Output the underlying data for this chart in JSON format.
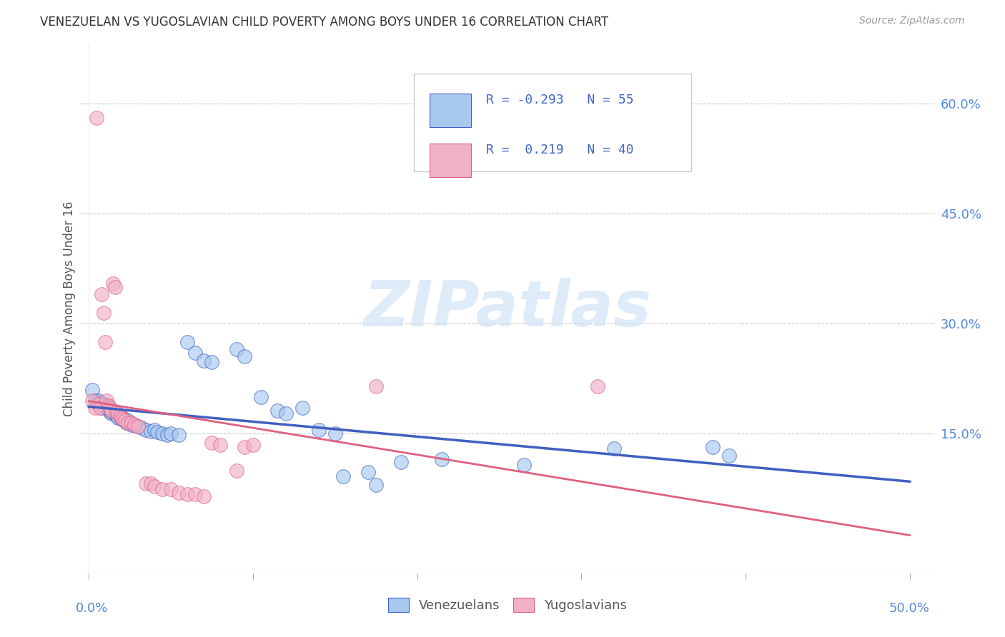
{
  "title": "VENEZUELAN VS YUGOSLAVIAN CHILD POVERTY AMONG BOYS UNDER 16 CORRELATION CHART",
  "source": "Source: ZipAtlas.com",
  "ylabel": "Child Poverty Among Boys Under 16",
  "ytick_labels": [
    "60.0%",
    "45.0%",
    "30.0%",
    "15.0%"
  ],
  "ytick_values": [
    0.6,
    0.45,
    0.3,
    0.15
  ],
  "xlim": [
    -0.005,
    0.515
  ],
  "ylim": [
    -0.04,
    0.68
  ],
  "color_venezuelan": "#A8C8F0",
  "color_yugoslavian": "#F0B0C8",
  "color_line_venezuelan": "#4060C0",
  "color_line_yugoslavian": "#E06080",
  "watermark": "ZIPatlas",
  "venezuelan_points": [
    [
      0.002,
      0.21
    ],
    [
      0.004,
      0.195
    ],
    [
      0.006,
      0.195
    ],
    [
      0.007,
      0.192
    ],
    [
      0.008,
      0.185
    ],
    [
      0.009,
      0.188
    ],
    [
      0.01,
      0.19
    ],
    [
      0.011,
      0.185
    ],
    [
      0.012,
      0.183
    ],
    [
      0.013,
      0.18
    ],
    [
      0.014,
      0.178
    ],
    [
      0.015,
      0.18
    ],
    [
      0.016,
      0.178
    ],
    [
      0.017,
      0.175
    ],
    [
      0.018,
      0.172
    ],
    [
      0.019,
      0.175
    ],
    [
      0.02,
      0.17
    ],
    [
      0.021,
      0.172
    ],
    [
      0.022,
      0.168
    ],
    [
      0.023,
      0.165
    ],
    [
      0.024,
      0.168
    ],
    [
      0.025,
      0.165
    ],
    [
      0.026,
      0.162
    ],
    [
      0.028,
      0.162
    ],
    [
      0.03,
      0.16
    ],
    [
      0.032,
      0.158
    ],
    [
      0.035,
      0.155
    ],
    [
      0.038,
      0.153
    ],
    [
      0.04,
      0.155
    ],
    [
      0.042,
      0.152
    ],
    [
      0.045,
      0.15
    ],
    [
      0.048,
      0.148
    ],
    [
      0.05,
      0.15
    ],
    [
      0.055,
      0.148
    ],
    [
      0.06,
      0.275
    ],
    [
      0.065,
      0.26
    ],
    [
      0.07,
      0.25
    ],
    [
      0.075,
      0.248
    ],
    [
      0.09,
      0.265
    ],
    [
      0.095,
      0.255
    ],
    [
      0.105,
      0.2
    ],
    [
      0.115,
      0.182
    ],
    [
      0.12,
      0.178
    ],
    [
      0.13,
      0.185
    ],
    [
      0.14,
      0.155
    ],
    [
      0.15,
      0.15
    ],
    [
      0.155,
      0.092
    ],
    [
      0.17,
      0.098
    ],
    [
      0.175,
      0.08
    ],
    [
      0.19,
      0.112
    ],
    [
      0.215,
      0.115
    ],
    [
      0.265,
      0.108
    ],
    [
      0.32,
      0.13
    ],
    [
      0.38,
      0.132
    ],
    [
      0.39,
      0.12
    ]
  ],
  "yugoslavian_points": [
    [
      0.002,
      0.195
    ],
    [
      0.004,
      0.185
    ],
    [
      0.005,
      0.58
    ],
    [
      0.006,
      0.19
    ],
    [
      0.007,
      0.185
    ],
    [
      0.008,
      0.34
    ],
    [
      0.009,
      0.315
    ],
    [
      0.01,
      0.275
    ],
    [
      0.011,
      0.195
    ],
    [
      0.012,
      0.188
    ],
    [
      0.013,
      0.185
    ],
    [
      0.014,
      0.182
    ],
    [
      0.015,
      0.355
    ],
    [
      0.016,
      0.35
    ],
    [
      0.017,
      0.18
    ],
    [
      0.018,
      0.178
    ],
    [
      0.019,
      0.175
    ],
    [
      0.02,
      0.172
    ],
    [
      0.021,
      0.17
    ],
    [
      0.022,
      0.168
    ],
    [
      0.024,
      0.165
    ],
    [
      0.026,
      0.165
    ],
    [
      0.028,
      0.162
    ],
    [
      0.03,
      0.16
    ],
    [
      0.035,
      0.082
    ],
    [
      0.038,
      0.082
    ],
    [
      0.04,
      0.078
    ],
    [
      0.045,
      0.075
    ],
    [
      0.05,
      0.075
    ],
    [
      0.055,
      0.07
    ],
    [
      0.06,
      0.068
    ],
    [
      0.065,
      0.068
    ],
    [
      0.07,
      0.065
    ],
    [
      0.075,
      0.138
    ],
    [
      0.08,
      0.135
    ],
    [
      0.09,
      0.1
    ],
    [
      0.095,
      0.132
    ],
    [
      0.1,
      0.135
    ],
    [
      0.175,
      0.215
    ],
    [
      0.31,
      0.215
    ]
  ]
}
